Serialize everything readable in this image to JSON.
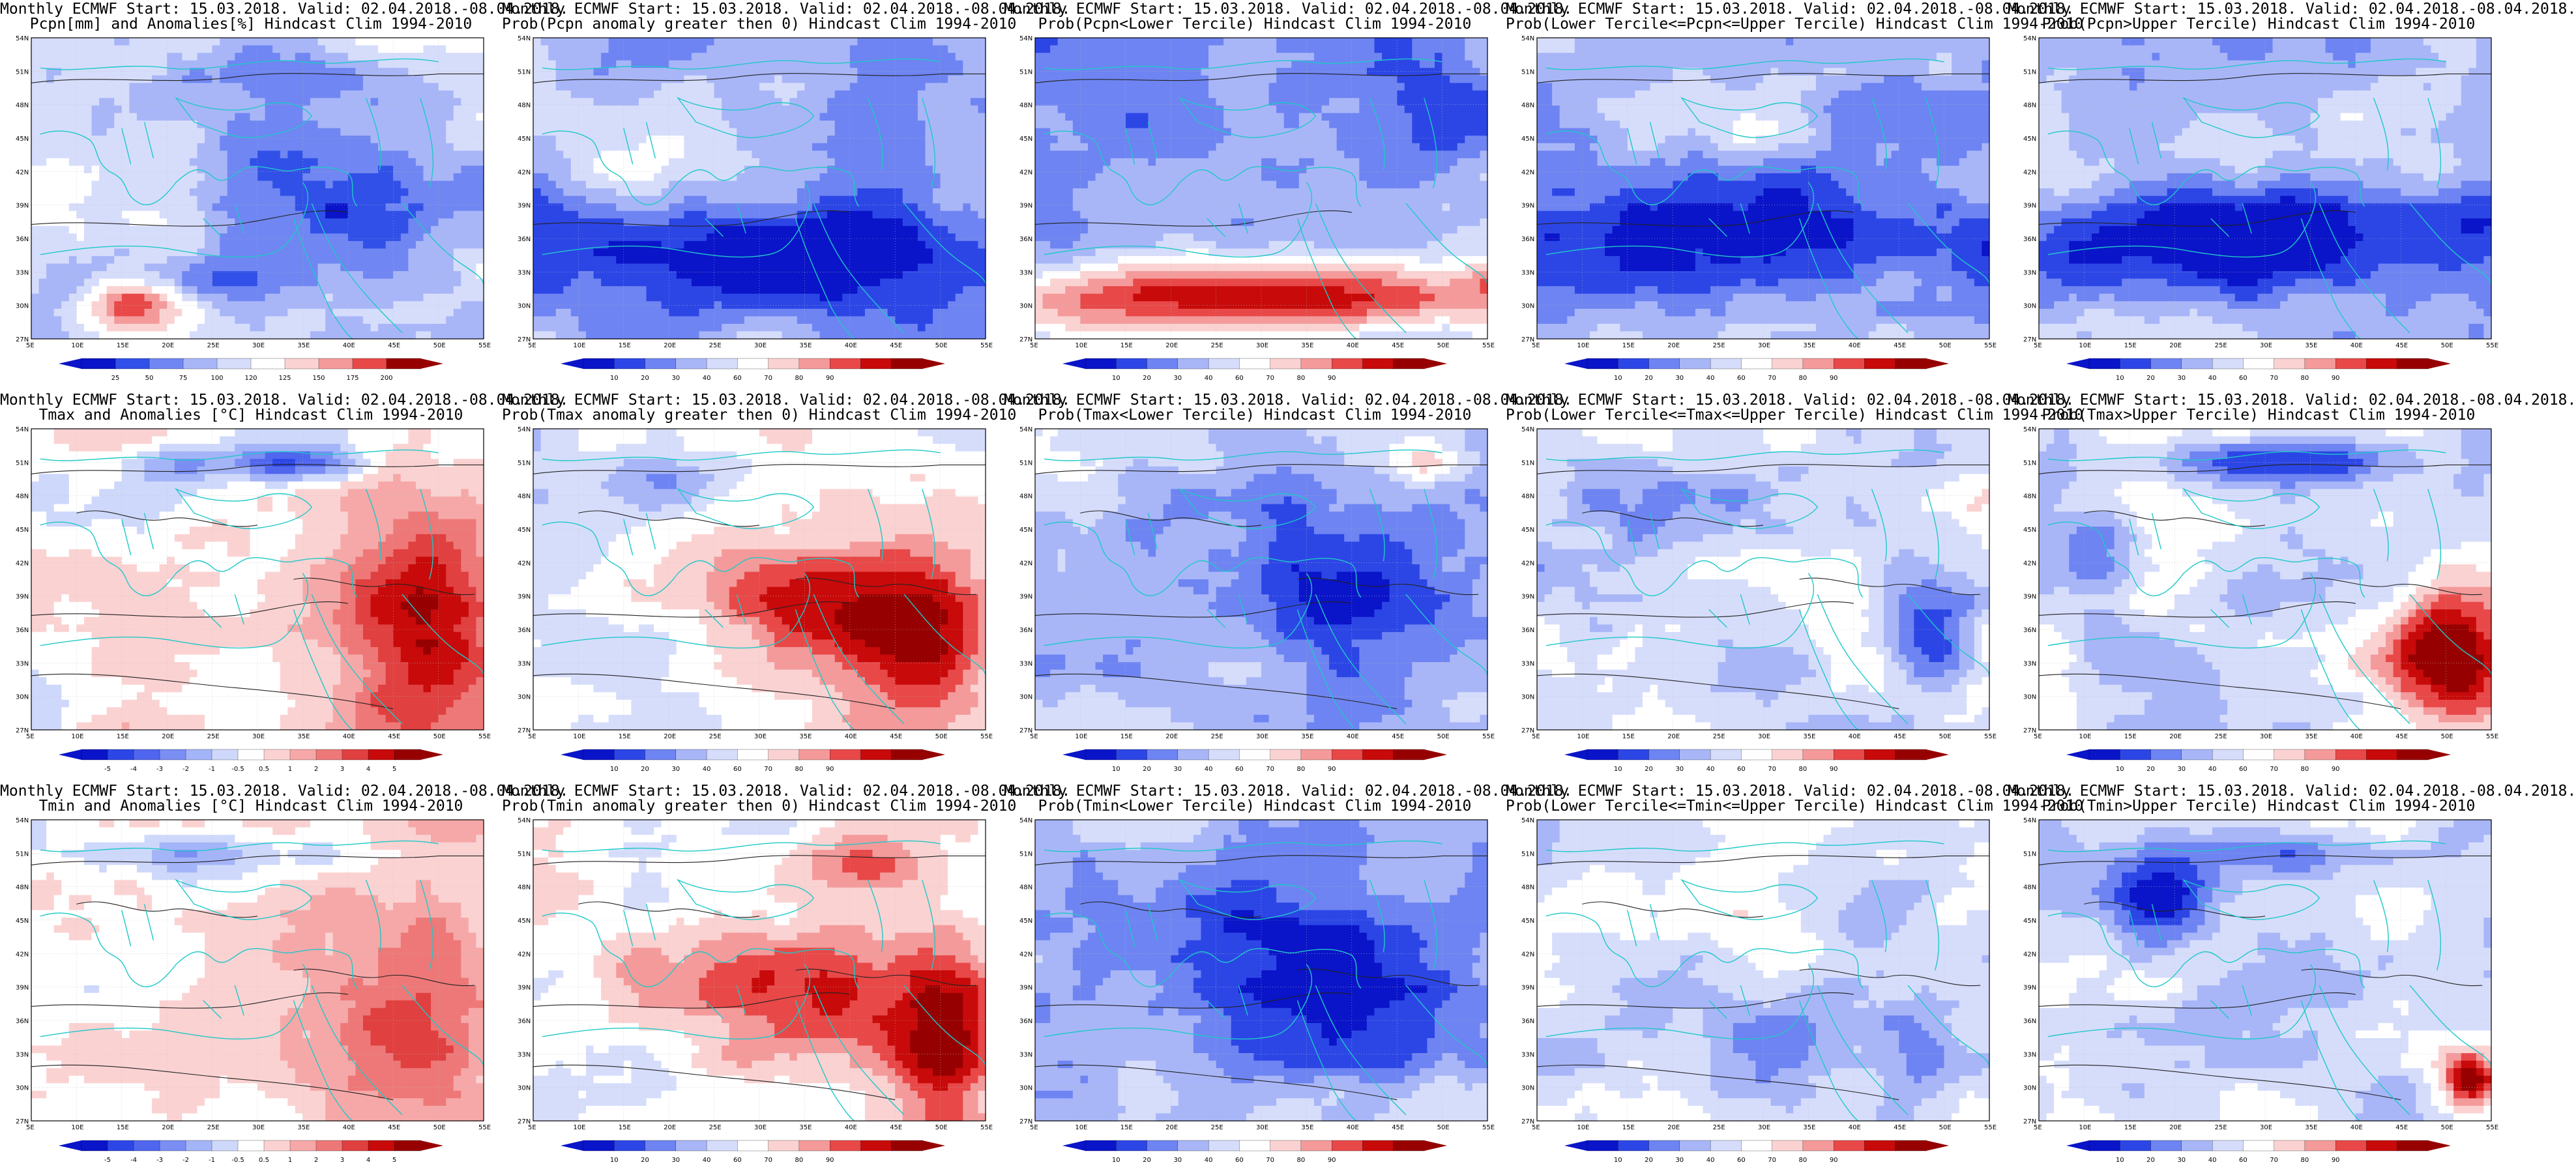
{
  "rows": [
    [
      {
        "title1": "Monthly ECMWF Start: 15.03.2018. Valid: 02.04.2018.-08.04.2018.",
        "title2": "Pcpn[mm] and Anomalies[%] Hindcast Clim 1994-2010",
        "scale": "anom_pcp"
      },
      {
        "title1": "Monthly ECMWF Start: 15.03.2018. Valid: 02.04.2018.-08.04.2018.",
        "title2": "Prob(Pcpn anomaly greater then 0) Hindcast Clim 1994-2010",
        "scale": "prob"
      },
      {
        "title1": "Monthly ECMWF Start: 15.03.2018. Valid: 02.04.2018.-08.04.2018.",
        "title2": "Prob(Pcpn<Lower Tercile) Hindcast Clim 1994-2010",
        "scale": "prob"
      },
      {
        "title1": "Monthly ECMWF Start: 15.03.2018. Valid: 02.04.2018.-08.04.2018.",
        "title2": "Prob(Lower Tercile<=Pcpn<=Upper Tercile) Hindcast Clim 1994-2010",
        "scale": "prob"
      },
      {
        "title1": "Monthly ECMWF Start: 15.03.2018. Valid: 02.04.2018.-08.04.2018.",
        "title2": "Prob(Pcpn>Upper Tercile) Hindcast Clim 1994-2010",
        "scale": "prob"
      }
    ],
    [
      {
        "title1": "Monthly ECMWF Start: 15.03.2018. Valid: 02.04.2018.-08.04.2018.",
        "title2": "Tmax and Anomalies [°C] Hindcast Clim 1994-2010",
        "scale": "anom_t"
      },
      {
        "title1": "Monthly ECMWF Start: 15.03.2018. Valid: 02.04.2018.-08.04.2018.",
        "title2": "Prob(Tmax anomaly greater then 0) Hindcast Clim 1994-2010",
        "scale": "prob"
      },
      {
        "title1": "Monthly ECMWF Start: 15.03.2018. Valid: 02.04.2018.-08.04.2018.",
        "title2": "Prob(Tmax<Lower Tercile) Hindcast Clim 1994-2010",
        "scale": "prob"
      },
      {
        "title1": "Monthly ECMWF Start: 15.03.2018. Valid: 02.04.2018.-08.04.2018.",
        "title2": "Prob(Lower Tercile<=Tmax<=Upper Tercile) Hindcast Clim 1994-2010",
        "scale": "prob"
      },
      {
        "title1": "Monthly ECMWF Start: 15.03.2018. Valid: 02.04.2018.-08.04.2018.",
        "title2": "Prob(Tmax>Upper Tercile) Hindcast Clim 1994-2010",
        "scale": "prob"
      }
    ],
    [
      {
        "title1": "Monthly ECMWF Start: 15.03.2018. Valid: 02.04.2018.-08.04.2018.",
        "title2": "Tmin and Anomalies [°C] Hindcast Clim 1994-2010",
        "scale": "anom_t"
      },
      {
        "title1": "Monthly ECMWF Start: 15.03.2018. Valid: 02.04.2018.-08.04.2018.",
        "title2": "Prob(Tmin anomaly greater then 0) Hindcast Clim 1994-2010",
        "scale": "prob"
      },
      {
        "title1": "Monthly ECMWF Start: 15.03.2018. Valid: 02.04.2018.-08.04.2018.",
        "title2": "Prob(Tmin<Lower Tercile) Hindcast Clim 1994-2010",
        "scale": "prob"
      },
      {
        "title1": "Monthly ECMWF Start: 15.03.2018. Valid: 02.04.2018.-08.04.2018.",
        "title2": "Prob(Lower Tercile<=Tmin<=Upper Tercile) Hindcast Clim 1994-2010",
        "scale": "prob"
      },
      {
        "title1": "Monthly ECMWF Start: 15.03.2018. Valid: 02.04.2018.-08.04.2018.",
        "title2": "Prob(Tmin>Upper Tercile) Hindcast Clim 1994-2010",
        "scale": "prob"
      }
    ]
  ],
  "lat_labels": [
    "54N",
    "51N",
    "48N",
    "45N",
    "42N",
    "39N",
    "36N",
    "33N",
    "30N",
    "27N"
  ],
  "lon_labels": [
    "5E",
    "10E",
    "15E",
    "20E",
    "25E",
    "30E",
    "35E",
    "40E",
    "45E",
    "50E",
    "55E"
  ],
  "scales": {
    "prob": {
      "labels": [
        "10",
        "20",
        "30",
        "40",
        "60",
        "70",
        "80",
        "90"
      ],
      "colors": [
        "#0a14c8",
        "#2c46e6",
        "#6e84f2",
        "#a8b6f8",
        "#d6ddfb",
        "#ffffff",
        "#fbd2d2",
        "#f49a9a",
        "#e84848",
        "#c80a0a",
        "#960000"
      ]
    },
    "anom_t": {
      "labels": [
        "-5",
        "-4",
        "-3",
        "-2",
        "-1",
        "-0.5",
        "0.5",
        "1",
        "2",
        "3",
        "4",
        "5"
      ],
      "colors": [
        "#0a14c8",
        "#2c46e6",
        "#5066ee",
        "#7a8ef4",
        "#a4b4f8",
        "#ced8fb",
        "#ffffff",
        "#fbd2d2",
        "#f6a8a8",
        "#ee7878",
        "#e04040",
        "#c80a0a",
        "#960000"
      ]
    },
    "anom_pcp": {
      "labels": [
        "25",
        "50",
        "75",
        "100",
        "120",
        "125",
        "150",
        "175",
        "200"
      ],
      "colors": [
        "#0a14c8",
        "#3050e8",
        "#7086f2",
        "#a8b6f8",
        "#d6ddfb",
        "#ffffff",
        "#fbd2d2",
        "#f49a9a",
        "#e84848",
        "#960000"
      ]
    }
  },
  "palette": {
    "coast": "#1fc8c8",
    "contour": "#222222",
    "deep_blue": "#0a14c8",
    "deep_red": "#960000"
  },
  "fields": {
    "r0c0": {
      "base": -0.15,
      "noise": 0.5,
      "blobs": [
        [
          0.2,
          0.85,
          0.12,
          0.1,
          1.0
        ],
        [
          0.55,
          0.45,
          0.2,
          0.15,
          -0.3
        ],
        [
          0.75,
          0.6,
          0.2,
          0.2,
          -0.5
        ],
        [
          0.7,
          0.1,
          0.2,
          0.1,
          -0.3
        ],
        [
          0.1,
          0.8,
          0.1,
          0.1,
          -0.7
        ],
        [
          0.3,
          0.8,
          0.15,
          0.1,
          -0.5
        ]
      ]
    },
    "r0c1": {
      "base": -0.4,
      "noise": 0.35,
      "blobs": [
        [
          0.5,
          0.7,
          0.6,
          0.18,
          -0.7
        ],
        [
          0.2,
          0.4,
          0.2,
          0.15,
          0.3
        ]
      ]
    },
    "r0c2": {
      "base": -0.45,
      "noise": 0.35,
      "blobs": [
        [
          0.5,
          0.85,
          0.7,
          0.12,
          1.3
        ],
        [
          0.8,
          0.25,
          0.2,
          0.2,
          -0.3
        ]
      ]
    },
    "r0c3": {
      "base": -0.45,
      "noise": 0.4,
      "blobs": [
        [
          0.5,
          0.65,
          0.6,
          0.2,
          -0.6
        ],
        [
          0.5,
          0.3,
          0.3,
          0.1,
          0.2
        ]
      ]
    },
    "r0c4": {
      "base": -0.3,
      "noise": 0.35,
      "blobs": [
        [
          0.5,
          0.65,
          0.6,
          0.17,
          -0.8
        ],
        [
          0.45,
          0.35,
          0.2,
          0.12,
          0.3
        ]
      ]
    },
    "r1c0": {
      "base": 0.05,
      "noise": 0.3,
      "blobs": [
        [
          0.85,
          0.65,
          0.2,
          0.35,
          1.0
        ],
        [
          0.55,
          0.1,
          0.15,
          0.06,
          -0.8
        ],
        [
          0.3,
          0.1,
          0.1,
          0.08,
          -0.4
        ]
      ]
    },
    "r1c1": {
      "base": -0.05,
      "noise": 0.35,
      "blobs": [
        [
          0.85,
          0.65,
          0.2,
          0.3,
          1.1
        ],
        [
          0.6,
          0.55,
          0.2,
          0.15,
          0.6
        ],
        [
          0.3,
          0.15,
          0.15,
          0.08,
          -0.4
        ]
      ]
    },
    "r1c2": {
      "base": -0.25,
      "noise": 0.35,
      "blobs": [
        [
          0.7,
          0.55,
          0.25,
          0.3,
          -0.9
        ],
        [
          0.85,
          0.1,
          0.08,
          0.06,
          0.5
        ]
      ]
    },
    "r1c3": {
      "base": -0.15,
      "noise": 0.45,
      "blobs": [
        [
          0.85,
          0.7,
          0.1,
          0.2,
          -0.7
        ],
        [
          0.3,
          0.2,
          0.2,
          0.15,
          -0.3
        ]
      ]
    },
    "r1c4": {
      "base": -0.15,
      "noise": 0.4,
      "blobs": [
        [
          0.9,
          0.75,
          0.12,
          0.2,
          1.2
        ],
        [
          0.5,
          0.1,
          0.25,
          0.08,
          -0.9
        ],
        [
          0.15,
          0.4,
          0.1,
          0.2,
          -0.4
        ]
      ]
    },
    "r2c0": {
      "base": 0.05,
      "noise": 0.3,
      "blobs": [
        [
          0.85,
          0.6,
          0.25,
          0.4,
          0.6
        ],
        [
          0.4,
          0.1,
          0.3,
          0.08,
          -0.5
        ]
      ]
    },
    "r2c1": {
      "base": 0.0,
      "noise": 0.35,
      "blobs": [
        [
          0.6,
          0.55,
          0.3,
          0.25,
          0.6
        ],
        [
          0.9,
          0.7,
          0.1,
          0.3,
          0.9
        ],
        [
          0.7,
          0.15,
          0.15,
          0.1,
          0.5
        ]
      ]
    },
    "r2c2": {
      "base": -0.25,
      "noise": 0.35,
      "blobs": [
        [
          0.6,
          0.45,
          0.35,
          0.35,
          -0.9
        ],
        [
          0.6,
          0.25,
          0.1,
          0.08,
          0.2
        ]
      ]
    },
    "r2c3": {
      "base": -0.15,
      "noise": 0.4,
      "blobs": [
        [
          0.5,
          0.7,
          0.3,
          0.2,
          -0.3
        ],
        [
          0.85,
          0.8,
          0.1,
          0.15,
          -0.5
        ]
      ]
    },
    "r2c4": {
      "base": -0.2,
      "noise": 0.4,
      "blobs": [
        [
          0.95,
          0.85,
          0.06,
          0.1,
          1.3
        ],
        [
          0.25,
          0.25,
          0.1,
          0.15,
          -0.8
        ],
        [
          0.5,
          0.1,
          0.25,
          0.08,
          -0.6
        ]
      ]
    }
  }
}
